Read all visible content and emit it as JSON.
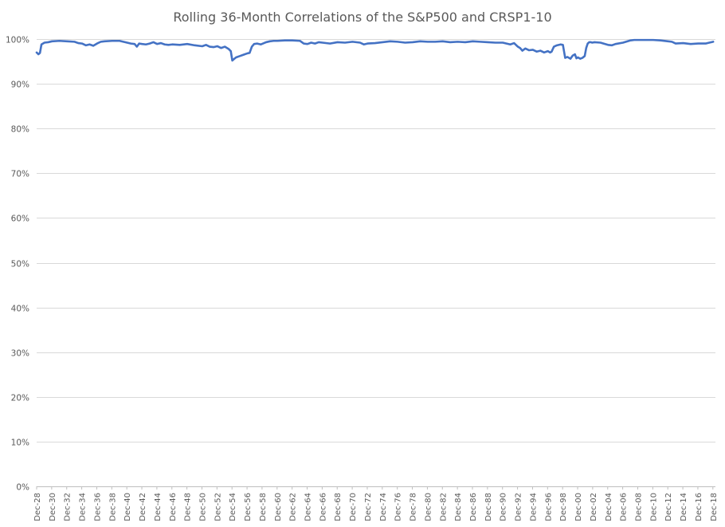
{
  "chart_data": {
    "type": "line",
    "title": "Rolling 36-Month Correlations of the S&P500 and CRSP1-10",
    "xlabel": "",
    "ylabel": "",
    "ylim": [
      0,
      100
    ],
    "y_unit": "%",
    "y_ticks": [
      0,
      10,
      20,
      30,
      40,
      50,
      60,
      70,
      80,
      90,
      100
    ],
    "y_tick_labels": [
      "0%",
      "10%",
      "20%",
      "30%",
      "40%",
      "50%",
      "60%",
      "70%",
      "80%",
      "90%",
      "100%"
    ],
    "xlim": [
      1928.96,
      2019.3
    ],
    "x_ticks": [
      1928.96,
      1930.96,
      1932.96,
      1934.96,
      1936.96,
      1938.96,
      1940.96,
      1942.96,
      1944.96,
      1946.96,
      1948.96,
      1950.96,
      1952.96,
      1954.96,
      1956.96,
      1958.96,
      1960.96,
      1962.96,
      1964.96,
      1966.96,
      1968.96,
      1970.96,
      1972.96,
      1974.96,
      1976.96,
      1978.96,
      1980.96,
      1982.96,
      1984.96,
      1986.96,
      1988.96,
      1990.96,
      1992.96,
      1994.96,
      1996.96,
      1998.96,
      2000.96,
      2002.96,
      2004.96,
      2006.96,
      2008.96,
      2010.96,
      2012.96,
      2014.96,
      2016.96,
      2018.96
    ],
    "x_tick_labels": [
      "Dec-28",
      "Dec-30",
      "Dec-32",
      "Dec-34",
      "Dec-36",
      "Dec-38",
      "Dec-40",
      "Dec-42",
      "Dec-44",
      "Dec-46",
      "Dec-48",
      "Dec-50",
      "Dec-52",
      "Dec-54",
      "Dec-56",
      "Dec-58",
      "Dec-60",
      "Dec-62",
      "Dec-64",
      "Dec-66",
      "Dec-68",
      "Dec-70",
      "Dec-72",
      "Dec-74",
      "Dec-76",
      "Dec-78",
      "Dec-80",
      "Dec-82",
      "Dec-84",
      "Dec-86",
      "Dec-88",
      "Dec-90",
      "Dec-92",
      "Dec-94",
      "Dec-96",
      "Dec-98",
      "Dec-00",
      "Dec-02",
      "Dec-04",
      "Dec-06",
      "Dec-08",
      "Dec-10",
      "Dec-12",
      "Dec-14",
      "Dec-16",
      "Dec-18"
    ],
    "grid": true,
    "legend": "none",
    "series": [
      {
        "color": "#4472c4",
        "x": [
          1928.96,
          1929.2,
          1929.4,
          1929.6,
          1930.0,
          1930.5,
          1931.0,
          1932.0,
          1933.0,
          1934.0,
          1934.5,
          1935.0,
          1935.5,
          1936.0,
          1936.5,
          1937.0,
          1937.5,
          1938.0,
          1939.0,
          1940.0,
          1941.0,
          1941.5,
          1942.0,
          1942.3,
          1942.6,
          1943.0,
          1943.5,
          1944.0,
          1944.5,
          1945.0,
          1945.5,
          1946.0,
          1946.5,
          1947.0,
          1948.0,
          1949.0,
          1950.0,
          1951.0,
          1951.5,
          1952.0,
          1952.5,
          1953.0,
          1953.5,
          1954.0,
          1954.5,
          1954.8,
          1955.0,
          1955.2,
          1955.5,
          1956.0,
          1956.5,
          1957.0,
          1957.3,
          1957.6,
          1957.9,
          1958.3,
          1958.8,
          1959.5,
          1960.0,
          1960.5,
          1961.0,
          1962.0,
          1963.0,
          1964.0,
          1964.5,
          1965.0,
          1965.5,
          1966.0,
          1966.5,
          1967.0,
          1968.0,
          1969.0,
          1970.0,
          1971.0,
          1972.0,
          1972.5,
          1973.0,
          1974.0,
          1975.0,
          1976.0,
          1977.0,
          1978.0,
          1979.0,
          1980.0,
          1981.0,
          1982.0,
          1983.0,
          1984.0,
          1985.0,
          1986.0,
          1987.0,
          1988.0,
          1989.0,
          1990.0,
          1991.0,
          1992.0,
          1992.5,
          1993.0,
          1993.3,
          1993.6,
          1994.0,
          1994.5,
          1995.0,
          1995.5,
          1996.0,
          1996.5,
          1997.0,
          1997.3,
          1997.5,
          1997.8,
          1998.2,
          1998.7,
          1999.0,
          1999.3,
          1999.6,
          2000.0,
          2000.3,
          2000.6,
          2000.8,
          2001.0,
          2001.3,
          2001.6,
          2001.9,
          2002.1,
          2002.3,
          2002.5,
          2002.7,
          2002.9,
          2003.2,
          2004.0,
          2005.0,
          2005.5,
          2006.0,
          2007.0,
          2008.0,
          2008.5,
          2009.0,
          2010.0,
          2011.0,
          2012.0,
          2013.0,
          2013.5,
          2014.0,
          2015.0,
          2016.0,
          2017.0,
          2018.0,
          2019.0
        ],
        "values": [
          97.0,
          96.6,
          96.9,
          98.8,
          99.2,
          99.3,
          99.5,
          99.6,
          99.5,
          99.4,
          99.1,
          99.0,
          98.6,
          98.8,
          98.5,
          99.0,
          99.4,
          99.5,
          99.6,
          99.6,
          99.2,
          99.0,
          98.9,
          98.3,
          99.0,
          98.9,
          98.8,
          99.0,
          99.3,
          98.9,
          99.1,
          98.8,
          98.7,
          98.8,
          98.7,
          98.9,
          98.6,
          98.4,
          98.7,
          98.3,
          98.2,
          98.4,
          98.0,
          98.3,
          97.8,
          97.3,
          95.2,
          95.5,
          95.9,
          96.2,
          96.5,
          96.8,
          96.9,
          98.3,
          98.9,
          99.0,
          98.8,
          99.3,
          99.5,
          99.6,
          99.6,
          99.7,
          99.7,
          99.6,
          99.0,
          98.9,
          99.2,
          99.0,
          99.3,
          99.2,
          99.0,
          99.3,
          99.2,
          99.4,
          99.2,
          98.8,
          99.0,
          99.1,
          99.3,
          99.5,
          99.4,
          99.2,
          99.3,
          99.5,
          99.4,
          99.4,
          99.5,
          99.3,
          99.4,
          99.3,
          99.5,
          99.4,
          99.3,
          99.2,
          99.2,
          98.8,
          99.1,
          98.3,
          98.0,
          97.4,
          97.9,
          97.5,
          97.6,
          97.2,
          97.4,
          97.0,
          97.3,
          97.0,
          97.2,
          98.3,
          98.6,
          98.8,
          98.7,
          95.8,
          96.0,
          95.6,
          96.3,
          96.6,
          95.7,
          95.9,
          95.6,
          95.8,
          96.2,
          98.0,
          99.0,
          99.3,
          99.3,
          99.2,
          99.3,
          99.2,
          98.7,
          98.6,
          98.9,
          99.2,
          99.7,
          99.8,
          99.8,
          99.8,
          99.8,
          99.7,
          99.5,
          99.4,
          99.0,
          99.1,
          98.9,
          99.0,
          99.0,
          99.4
        ]
      }
    ]
  }
}
